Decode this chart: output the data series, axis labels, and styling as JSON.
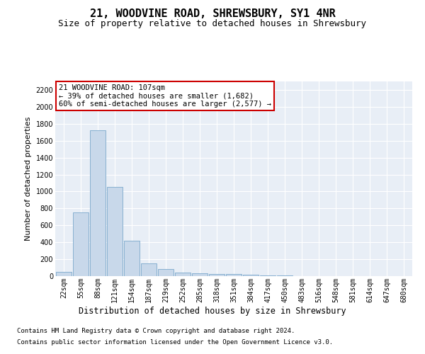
{
  "title": "21, WOODVINE ROAD, SHREWSBURY, SY1 4NR",
  "subtitle": "Size of property relative to detached houses in Shrewsbury",
  "xlabel": "Distribution of detached houses by size in Shrewsbury",
  "ylabel": "Number of detached properties",
  "footnote1": "Contains HM Land Registry data © Crown copyright and database right 2024.",
  "footnote2": "Contains public sector information licensed under the Open Government Licence v3.0.",
  "annotation_line1": "21 WOODVINE ROAD: 107sqm",
  "annotation_line2": "← 39% of detached houses are smaller (1,682)",
  "annotation_line3": "60% of semi-detached houses are larger (2,577) →",
  "bar_labels": [
    "22sqm",
    "55sqm",
    "88sqm",
    "121sqm",
    "154sqm",
    "187sqm",
    "219sqm",
    "252sqm",
    "285sqm",
    "318sqm",
    "351sqm",
    "384sqm",
    "417sqm",
    "450sqm",
    "483sqm",
    "516sqm",
    "548sqm",
    "581sqm",
    "614sqm",
    "647sqm",
    "680sqm"
  ],
  "bar_values": [
    50,
    750,
    1720,
    1050,
    420,
    150,
    80,
    45,
    35,
    28,
    22,
    15,
    10,
    5,
    3,
    2,
    1,
    1,
    0,
    0,
    0
  ],
  "bar_color": "#c8d8ea",
  "bar_edge_color": "#7aa8cc",
  "background_color": "#e8eef6",
  "annotation_box_edgecolor": "#cc0000",
  "ylim": [
    0,
    2300
  ],
  "yticks": [
    0,
    200,
    400,
    600,
    800,
    1000,
    1200,
    1400,
    1600,
    1800,
    2000,
    2200
  ],
  "grid_color": "#ffffff",
  "title_fontsize": 11,
  "subtitle_fontsize": 9,
  "annotation_fontsize": 7.5,
  "tick_fontsize": 7,
  "ylabel_fontsize": 8,
  "xlabel_fontsize": 8.5,
  "footnote_fontsize": 6.5
}
